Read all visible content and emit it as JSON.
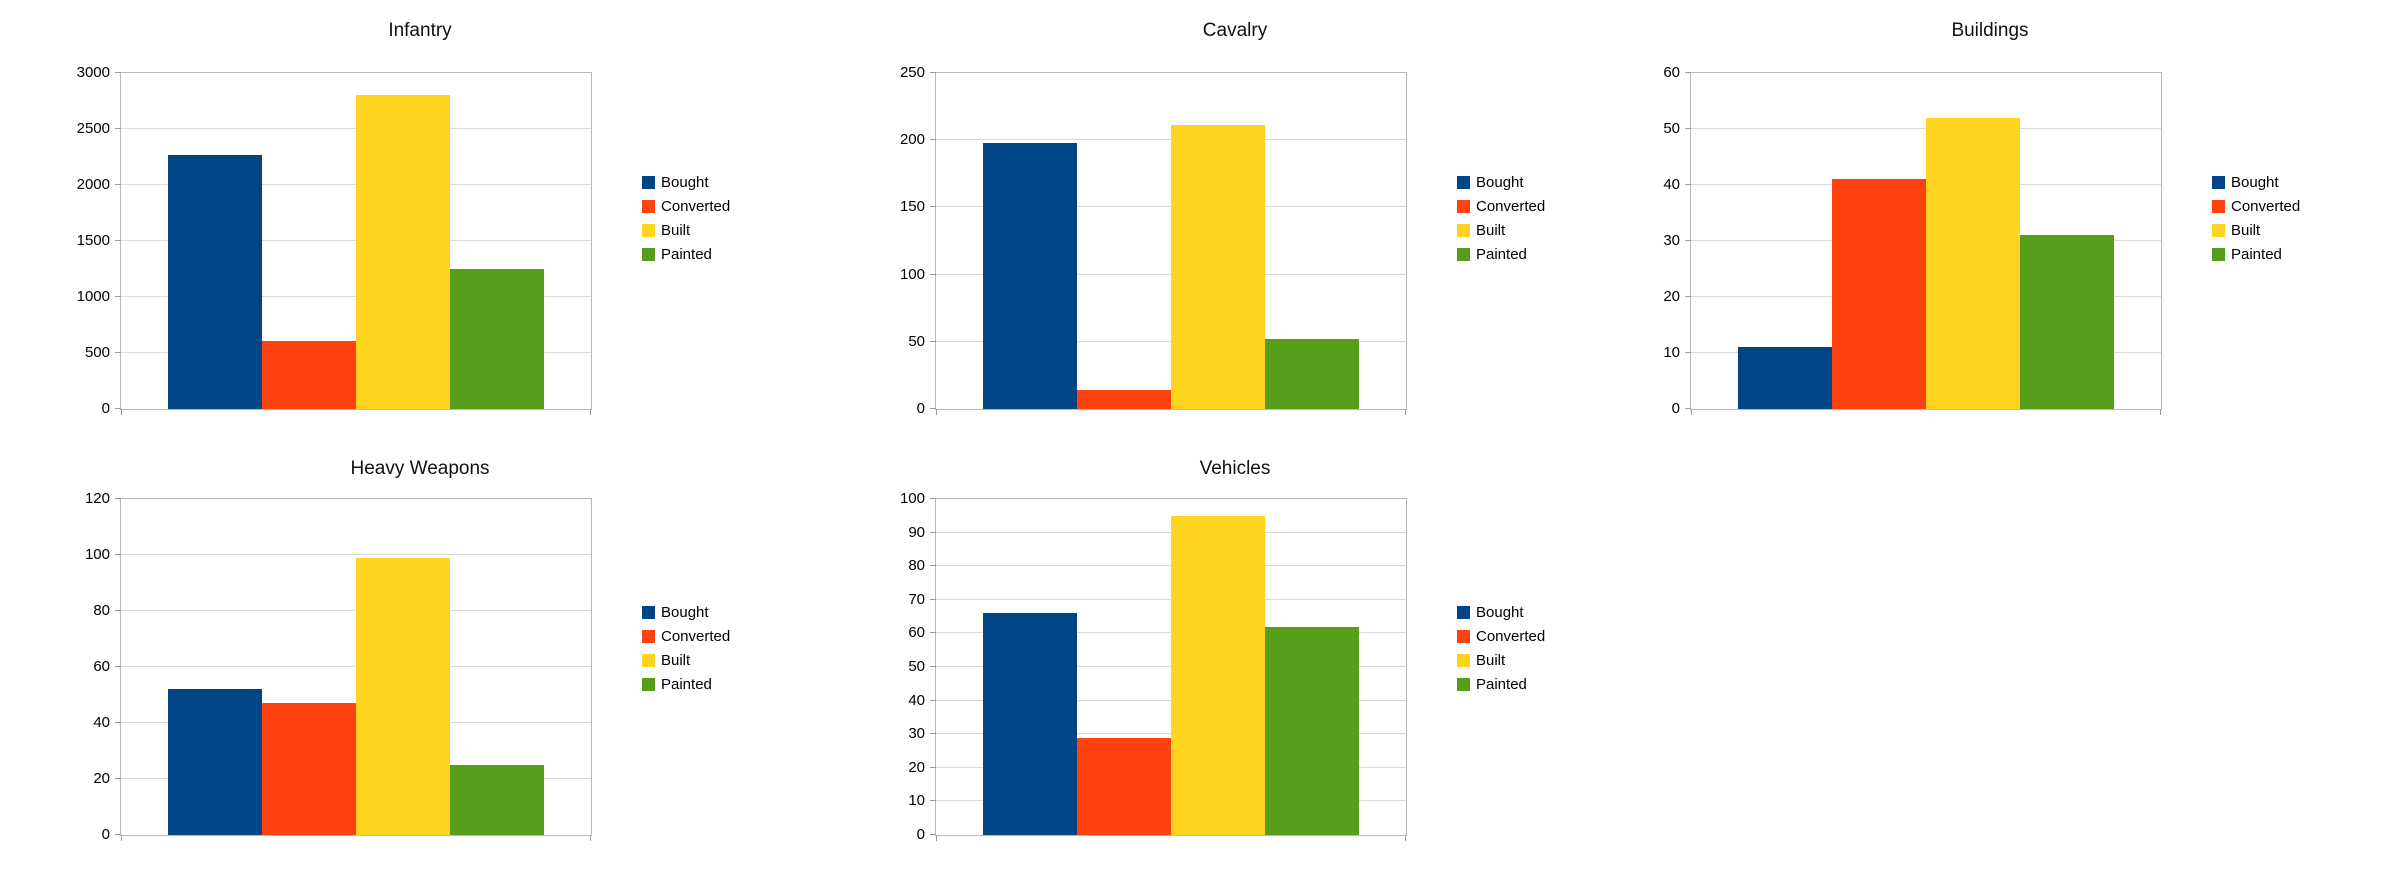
{
  "page": {
    "background": "#ffffff"
  },
  "palette": {
    "Bought": "#004586",
    "Converted": "#FF420E",
    "Built": "#FFD320",
    "Painted": "#579D1C"
  },
  "chart_data": [
    {
      "type": "bar",
      "title": "Infantry",
      "categories": [
        ""
      ],
      "series": [
        {
          "name": "Bought",
          "value": 2270,
          "color": "#004586"
        },
        {
          "name": "Converted",
          "value": 610,
          "color": "#FF420E"
        },
        {
          "name": "Built",
          "value": 2800,
          "color": "#FFD320"
        },
        {
          "name": "Painted",
          "value": 1250,
          "color": "#579D1C"
        }
      ],
      "ylim": [
        0,
        3000
      ],
      "yticks": [
        0,
        500,
        1000,
        1500,
        2000,
        2500,
        3000
      ],
      "grid": true,
      "legend_position": "right"
    },
    {
      "type": "bar",
      "title": "Cavalry",
      "categories": [
        ""
      ],
      "series": [
        {
          "name": "Bought",
          "value": 198,
          "color": "#004586"
        },
        {
          "name": "Converted",
          "value": 14,
          "color": "#FF420E"
        },
        {
          "name": "Built",
          "value": 211,
          "color": "#FFD320"
        },
        {
          "name": "Painted",
          "value": 52,
          "color": "#579D1C"
        }
      ],
      "ylim": [
        0,
        250
      ],
      "yticks": [
        0,
        50,
        100,
        150,
        200,
        250
      ],
      "grid": true,
      "legend_position": "right"
    },
    {
      "type": "bar",
      "title": "Buildings",
      "categories": [
        ""
      ],
      "series": [
        {
          "name": "Bought",
          "value": 11,
          "color": "#004586"
        },
        {
          "name": "Converted",
          "value": 41,
          "color": "#FF420E"
        },
        {
          "name": "Built",
          "value": 52,
          "color": "#FFD320"
        },
        {
          "name": "Painted",
          "value": 31,
          "color": "#579D1C"
        }
      ],
      "ylim": [
        0,
        60
      ],
      "yticks": [
        0,
        10,
        20,
        30,
        40,
        50,
        60
      ],
      "grid": true,
      "legend_position": "right"
    },
    {
      "type": "bar",
      "title": "Heavy Weapons",
      "categories": [
        ""
      ],
      "series": [
        {
          "name": "Bought",
          "value": 52,
          "color": "#004586"
        },
        {
          "name": "Converted",
          "value": 47,
          "color": "#FF420E"
        },
        {
          "name": "Built",
          "value": 99,
          "color": "#FFD320"
        },
        {
          "name": "Painted",
          "value": 25,
          "color": "#579D1C"
        }
      ],
      "ylim": [
        0,
        120
      ],
      "yticks": [
        0,
        20,
        40,
        60,
        80,
        100,
        120
      ],
      "grid": true,
      "legend_position": "right"
    },
    {
      "type": "bar",
      "title": "Vehicles",
      "categories": [
        ""
      ],
      "series": [
        {
          "name": "Bought",
          "value": 66,
          "color": "#004586"
        },
        {
          "name": "Converted",
          "value": 29,
          "color": "#FF420E"
        },
        {
          "name": "Built",
          "value": 95,
          "color": "#FFD320"
        },
        {
          "name": "Painted",
          "value": 62,
          "color": "#579D1C"
        }
      ],
      "ylim": [
        0,
        100
      ],
      "yticks": [
        0,
        10,
        20,
        30,
        40,
        50,
        60,
        70,
        80,
        90,
        100
      ],
      "grid": true,
      "legend_position": "right"
    }
  ]
}
